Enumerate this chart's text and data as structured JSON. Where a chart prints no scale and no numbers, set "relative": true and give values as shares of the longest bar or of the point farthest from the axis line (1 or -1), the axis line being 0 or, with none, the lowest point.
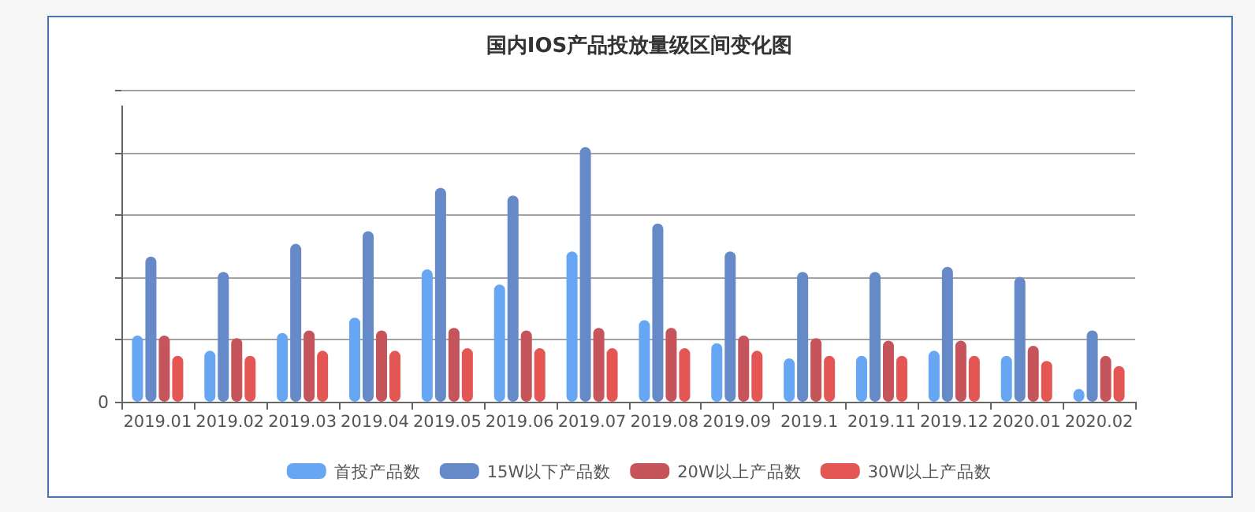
{
  "chart_data": {
    "type": "bar",
    "title": "国内IOS产品投放量级区间变化图",
    "categories": [
      "2019.01",
      "2019.02",
      "2019.03",
      "2019.04",
      "2019.05",
      "2019.06",
      "2019.07",
      "2019.08",
      "2019.09",
      "2019.1",
      "2019.11",
      "2019.12",
      "2020.01",
      "2020.02"
    ],
    "relative": true,
    "annotations": [
      "0"
    ],
    "grid": "y",
    "legend": "bottom",
    "series": [
      {
        "name": "首投产品数",
        "color": "#66a6f3",
        "values": [
          0.26,
          0.2,
          0.27,
          0.33,
          0.52,
          0.46,
          0.59,
          0.32,
          0.23,
          0.17,
          0.18,
          0.2,
          0.18,
          0.05
        ]
      },
      {
        "name": "15W以下产品数",
        "color": "#6689c8",
        "values": [
          0.57,
          0.51,
          0.62,
          0.67,
          0.84,
          0.81,
          1,
          0.7,
          0.59,
          0.51,
          0.51,
          0.53,
          0.49,
          0.28
        ]
      },
      {
        "name": "20W以上产品数",
        "color": "#c5545b",
        "values": [
          0.26,
          0.25,
          0.28,
          0.28,
          0.29,
          0.28,
          0.29,
          0.29,
          0.26,
          0.25,
          0.24,
          0.24,
          0.22,
          0.18
        ]
      },
      {
        "name": "30W以上产品数",
        "color": "#e35654",
        "values": [
          0.18,
          0.18,
          0.2,
          0.2,
          0.21,
          0.21,
          0.21,
          0.21,
          0.2,
          0.18,
          0.18,
          0.18,
          0.16,
          0.14
        ]
      }
    ]
  }
}
